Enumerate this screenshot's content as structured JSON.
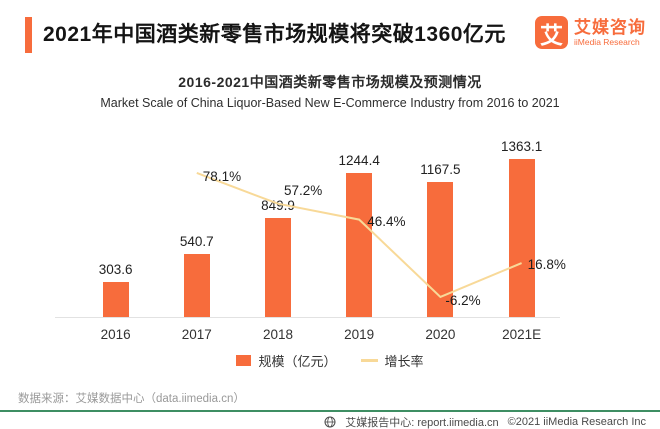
{
  "header": {
    "title": "2021年中国酒类新零售市场规模将突破1360亿元",
    "logo": {
      "mark": "艾",
      "name_cn": "艾媒咨询",
      "name_en": "iiMedia Research"
    }
  },
  "chart": {
    "title_cn": "2016-2021中国酒类新零售市场规模及预测情况",
    "title_en": "Market Scale of China  Liquor-Based New E-Commerce Industry from 2016 to 2021"
  },
  "chart_data": {
    "type": "bar+line",
    "categories": [
      "2016",
      "2017",
      "2018",
      "2019",
      "2020",
      "2021E"
    ],
    "series": [
      {
        "name": "规模（亿元）",
        "type": "bar",
        "color": "#f76c3c",
        "values": [
          303.6,
          540.7,
          849.9,
          1244.4,
          1167.5,
          1363.1
        ]
      },
      {
        "name": "增长率",
        "type": "line",
        "color": "#f8d998",
        "unit": "%",
        "values": [
          null,
          78.1,
          57.2,
          46.4,
          -6.2,
          16.8
        ]
      }
    ],
    "title": "2016-2021中国酒类新零售市场规模及预测情况",
    "xlabel": "",
    "ylabel": "",
    "ylim_bar": [
      0,
      1600
    ],
    "ylim_rate": [
      -20,
      100
    ],
    "grid": false,
    "legend_position": "bottom",
    "value_labels_shown": true
  },
  "legend": {
    "bar_label": "规模（亿元）",
    "line_label": "增长率"
  },
  "footer": {
    "source": "数据来源：艾媒数据中心（data.iimedia.cn）",
    "report_center": "艾媒报告中心: report.iimedia.cn",
    "copyright": "©2021  iiMedia Research Inc"
  },
  "colors": {
    "accent": "#f76c3c",
    "line": "#f8d998",
    "divider_green": "#3e8e63"
  }
}
